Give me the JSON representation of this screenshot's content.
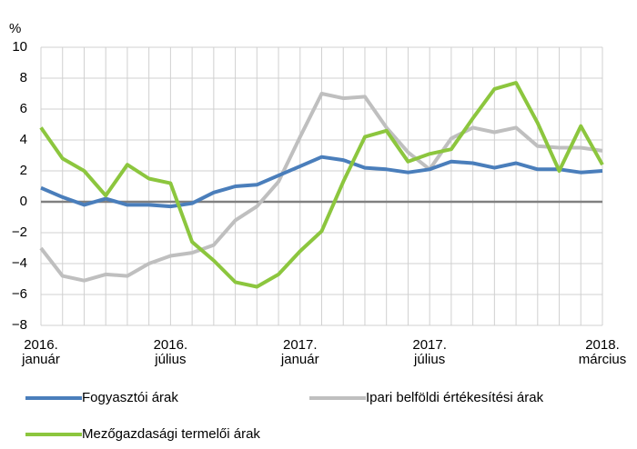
{
  "chart_data": {
    "type": "line",
    "y_label": "%",
    "categories": [
      "2016. január",
      null,
      null,
      null,
      null,
      null,
      "2016. július",
      null,
      null,
      null,
      null,
      null,
      "2017. január",
      null,
      null,
      null,
      null,
      null,
      "2017. július",
      null,
      null,
      null,
      null,
      null,
      null,
      null,
      "2018. március"
    ],
    "series": [
      {
        "name": "Fogyasztói árak",
        "color": "#4a7ebb",
        "values": [
          0.9,
          0.3,
          -0.2,
          0.2,
          -0.2,
          -0.2,
          -0.3,
          -0.1,
          0.6,
          1.0,
          1.1,
          1.7,
          2.3,
          2.9,
          2.7,
          2.2,
          2.1,
          1.9,
          2.1,
          2.6,
          2.5,
          2.2,
          2.5,
          2.1,
          2.1,
          1.9,
          2.0
        ]
      },
      {
        "name": "Ipari belföldi értékesítési árak",
        "color": "#bfbfbf",
        "values": [
          -3.0,
          -4.8,
          -5.1,
          -4.7,
          -4.8,
          -4.0,
          -3.5,
          -3.3,
          -2.8,
          -1.2,
          -0.3,
          1.3,
          4.2,
          7.0,
          6.7,
          6.8,
          4.8,
          3.2,
          2.1,
          4.1,
          4.8,
          4.5,
          4.8,
          3.6,
          3.5,
          3.5,
          3.3
        ]
      },
      {
        "name": "Mezőgazdasági termelői árak",
        "color": "#8cc63e",
        "values": [
          4.8,
          2.8,
          2.0,
          0.4,
          2.4,
          1.5,
          1.2,
          -2.6,
          -3.8,
          -5.2,
          -5.5,
          -4.7,
          -3.2,
          -1.9,
          1.3,
          4.2,
          4.6,
          2.6,
          3.1,
          3.4,
          5.4,
          7.3,
          7.7,
          5.1,
          2.0,
          4.9,
          2.4
        ]
      }
    ],
    "ylim": [
      -8,
      10
    ],
    "yticks": [
      {
        "value": -8,
        "label": "−8"
      },
      {
        "value": -6,
        "label": "−6"
      },
      {
        "value": -4,
        "label": "−4"
      },
      {
        "value": -2,
        "label": "−2"
      },
      0,
      2,
      4,
      6,
      8,
      10
    ],
    "grid": true
  }
}
